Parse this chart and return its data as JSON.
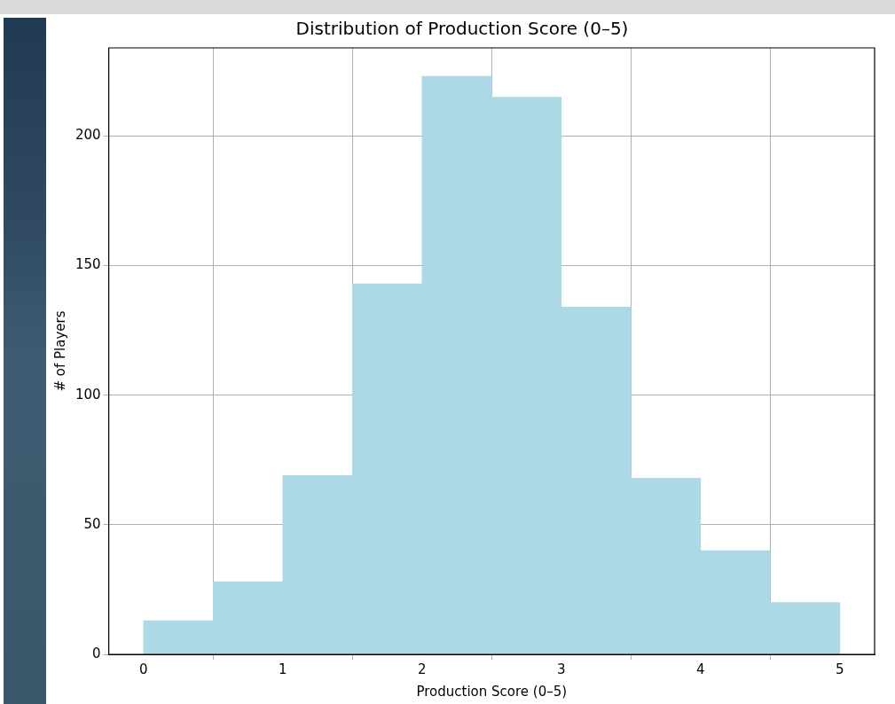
{
  "chart_data": {
    "type": "histogram",
    "title": "Distribution of Production Score (0–5)",
    "xlabel": "Production Score (0–5)",
    "ylabel": "# of Players",
    "bins": [
      0,
      0.5,
      1,
      1.5,
      2,
      2.5,
      3,
      3.5,
      4,
      4.5,
      5
    ],
    "values": [
      13,
      28,
      69,
      143,
      223,
      215,
      134,
      68,
      40,
      20
    ],
    "color": "#add8e6",
    "xlim": [
      -0.25,
      5.25
    ],
    "xticks": [
      0,
      1,
      2,
      3,
      4,
      5
    ],
    "ylim": [
      0,
      234
    ],
    "yticks": [
      0,
      50,
      100,
      150,
      200
    ],
    "grid": true,
    "legend": false
  }
}
